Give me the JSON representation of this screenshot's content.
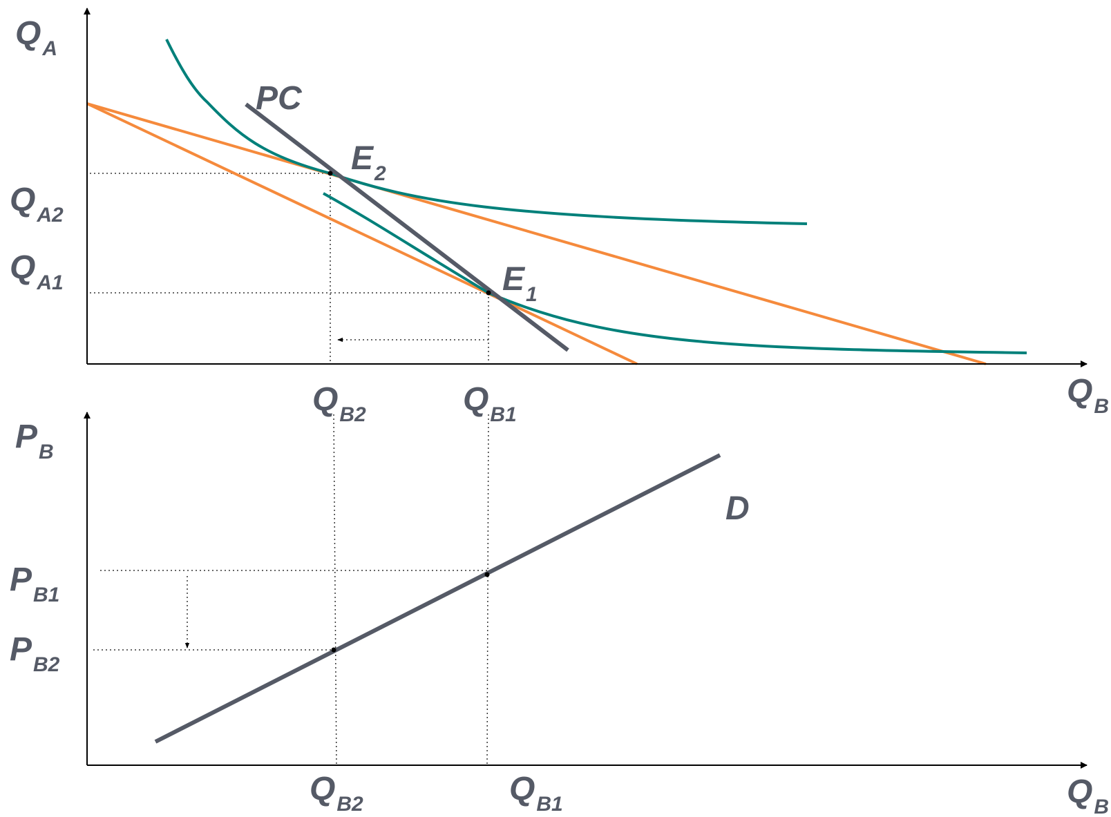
{
  "colors": {
    "budget_line": "#f58a3c",
    "indifference_curve": "#00807a",
    "price_consumption": "#555a66",
    "demand": "#555a66",
    "label": "#555a66"
  },
  "top_panel": {
    "y_axis": {
      "main": "Q",
      "sub": "A"
    },
    "x_axis": {
      "main": "Q",
      "sub": "B"
    },
    "y_ticks": [
      {
        "main": "Q",
        "sub": "A2"
      },
      {
        "main": "Q",
        "sub": "A1"
      }
    ],
    "x_ticks": [
      {
        "main": "Q",
        "sub": "B2"
      },
      {
        "main": "Q",
        "sub": "B1"
      }
    ],
    "pc_label": "PC",
    "e1": {
      "main": "E",
      "sub": "1"
    },
    "e2": {
      "main": "E",
      "sub": "2"
    }
  },
  "bottom_panel": {
    "y_axis": {
      "main": "P",
      "sub": "B"
    },
    "x_axis": {
      "main": "Q",
      "sub": "B"
    },
    "y_ticks": [
      {
        "main": "P",
        "sub": "B1"
      },
      {
        "main": "P",
        "sub": "B2"
      }
    ],
    "x_ticks": [
      {
        "main": "Q",
        "sub": "B2"
      },
      {
        "main": "Q",
        "sub": "B1"
      }
    ],
    "demand_label": "D"
  }
}
